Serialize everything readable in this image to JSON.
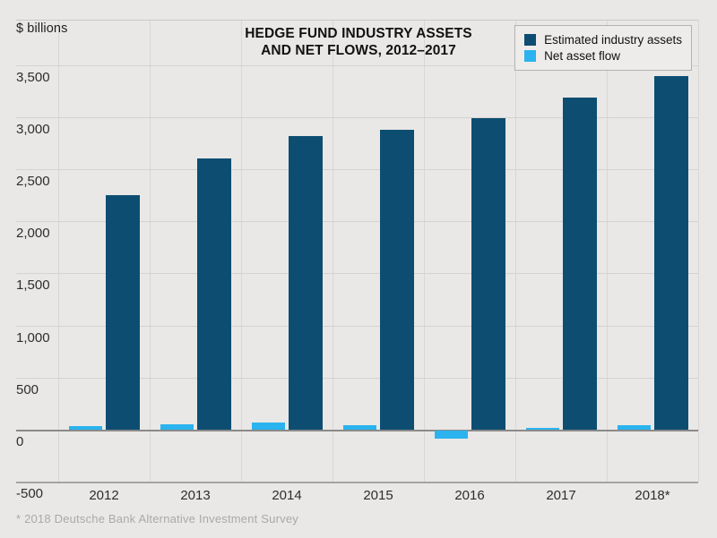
{
  "page": {
    "background": "#e9e8e6"
  },
  "header": {
    "unit_label": "$ billions",
    "title_line1": "HEDGE FUND INDUSTRY ASSETS",
    "title_line2": "AND NET FLOWS, 2012–2017"
  },
  "legend": {
    "items": [
      {
        "label": "Estimated industry assets",
        "color": "#0d4d72"
      },
      {
        "label": "Net asset flow",
        "color": "#2ab3ef"
      }
    ]
  },
  "footer": {
    "footnote": "* 2018 Deutsche Bank Alternative Investment Survey"
  },
  "chart_data": {
    "type": "bar",
    "title": "HEDGE FUND INDUSTRY ASSETS AND NET FLOWS, 2012–2017",
    "ylabel": "$ billions",
    "xlabel": "",
    "categories": [
      "2012",
      "2013",
      "2014",
      "2015",
      "2016",
      "2017",
      "2018*"
    ],
    "series": [
      {
        "name": "Estimated industry assets",
        "color": "#0d4d72",
        "values": [
          2250,
          2600,
          2820,
          2880,
          2990,
          3190,
          3390
        ]
      },
      {
        "name": "Net asset flow",
        "color": "#2ab3ef",
        "values": [
          35,
          55,
          65,
          40,
          -80,
          20,
          45
        ]
      }
    ],
    "ylim": [
      -500,
      3500
    ],
    "yticks": [
      3500,
      3000,
      2500,
      2000,
      1500,
      1000,
      500,
      0,
      -500
    ],
    "ytick_labels": [
      "3,500",
      "3,000",
      "2,500",
      "2,000",
      "1,500",
      "1,000",
      "500",
      "0",
      "-500"
    ],
    "grid": true,
    "legend_position": "top-right",
    "footnote": "* 2018 Deutsche Bank Alternative Investment Survey"
  }
}
